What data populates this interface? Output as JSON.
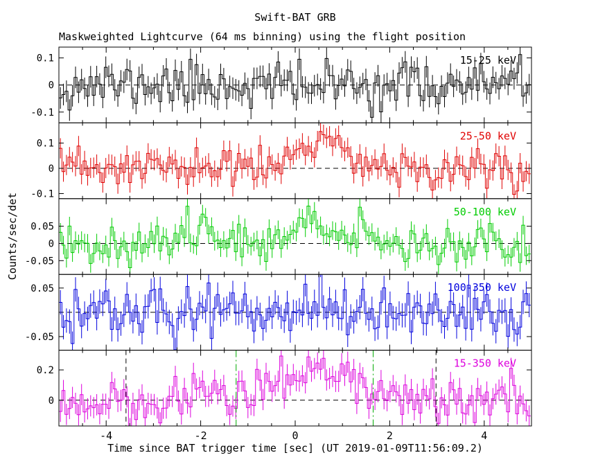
{
  "page": {
    "title": "Swift-BAT GRB",
    "subtitle": "Maskweighted Lightcurve (64 ms binning) using the flight position",
    "xlabel": "Time since BAT trigger time [sec] (UT 2019-01-09T11:56:09.2)",
    "ylabel": "Counts/sec/det"
  },
  "chart_data": {
    "type": "line",
    "style": "histogram-step-with-errorbars",
    "title": "Swift-BAT GRB",
    "subtitle": "Maskweighted Lightcurve (64 ms binning) using the flight position",
    "xlabel": "Time since BAT trigger time [sec] (UT 2019-01-09T11:56:09.2)",
    "ylabel": "Counts/sec/det",
    "x": {
      "min": -5,
      "max": 5,
      "bin_width": 0.064,
      "major_ticks": [
        -4,
        -2,
        0,
        2,
        4
      ],
      "major_tick_labels": [
        "-4",
        "-2",
        "0",
        "2",
        "4"
      ],
      "minor_tick_step": 0.5
    },
    "panels": [
      {
        "name": "15-25 keV",
        "color": "#000000",
        "ylim": [
          -0.14,
          0.14
        ],
        "yticks": [
          0.1,
          0,
          -0.1
        ],
        "baseline": 0,
        "noise_sigma": 0.042,
        "error_bar": 0.04,
        "seed": 11,
        "bursts": []
      },
      {
        "name": "25-50 keV",
        "color": "#e00000",
        "ylim": [
          -0.12,
          0.18
        ],
        "yticks": [
          0.1,
          0,
          -0.1
        ],
        "baseline": 0,
        "noise_sigma": 0.04,
        "error_bar": 0.04,
        "seed": 23,
        "bursts": [
          {
            "t": 0.4,
            "width": 0.5,
            "amp": 0.07
          },
          {
            "t": 1.0,
            "width": 0.3,
            "amp": 0.05
          }
        ]
      },
      {
        "name": "50-100 keV",
        "color": "#00cc00",
        "ylim": [
          -0.09,
          0.13
        ],
        "yticks": [
          0.05,
          0,
          -0.05
        ],
        "baseline": 0,
        "noise_sigma": 0.028,
        "error_bar": 0.027,
        "seed": 37,
        "bursts": [
          {
            "t": -2.0,
            "width": 0.25,
            "amp": 0.05
          },
          {
            "t": 0.3,
            "width": 0.8,
            "amp": 0.045
          }
        ]
      },
      {
        "name": "100-350 keV",
        "color": "#0000dd",
        "ylim": [
          -0.078,
          0.078
        ],
        "yticks": [
          0.05,
          -0.05
        ],
        "baseline": 0,
        "noise_sigma": 0.026,
        "error_bar": 0.025,
        "seed": 47,
        "bursts": [
          {
            "t": 0.4,
            "width": 0.5,
            "amp": 0.015
          }
        ]
      },
      {
        "name": "15-350 keV",
        "color": "#dd00dd",
        "ylim": [
          -0.17,
          0.33
        ],
        "yticks": [
          0.2,
          0
        ],
        "baseline": 0,
        "noise_sigma": 0.072,
        "error_bar": 0.07,
        "seed": 59,
        "bursts": [
          {
            "t": 0.3,
            "width": 0.7,
            "amp": 0.16
          },
          {
            "t": -2.0,
            "width": 0.3,
            "amp": 0.07
          },
          {
            "t": 1.3,
            "width": 0.4,
            "amp": 0.08
          }
        ]
      }
    ],
    "zero_line": {
      "style": "dashed",
      "color": "#000000"
    },
    "markers": {
      "panel_index": 4,
      "vertical_lines": [
        {
          "t": -3.58,
          "color": "#000000",
          "style": "dashed"
        },
        {
          "t": 2.98,
          "color": "#000000",
          "style": "dashed"
        },
        {
          "t": -1.25,
          "color": "#00aa00",
          "style": "dash-dot"
        },
        {
          "t": 1.65,
          "color": "#00aa00",
          "style": "dash-dot"
        }
      ]
    },
    "legend_position": "inside-top-right-per-panel",
    "grid": false
  }
}
